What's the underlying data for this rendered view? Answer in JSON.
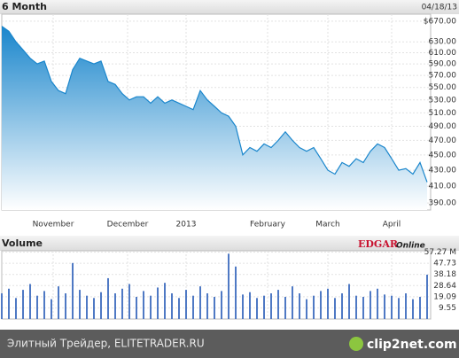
{
  "chart_data": [
    {
      "type": "area",
      "title": "6 Month",
      "subtitle": "04/18/13",
      "x": [
        0,
        2,
        4,
        6,
        8,
        10,
        12,
        14,
        16,
        18,
        20,
        22,
        24,
        26,
        28,
        30,
        32,
        34,
        36,
        38,
        40,
        42,
        44,
        46,
        48,
        50,
        52,
        54,
        56,
        58,
        60,
        62,
        64,
        66,
        68,
        70,
        72,
        74,
        76,
        78,
        80,
        82,
        84,
        86,
        88,
        90,
        92,
        94,
        96,
        98,
        100,
        102,
        104,
        106,
        108,
        110,
        112,
        114,
        116,
        118,
        120
      ],
      "values": [
        660,
        650,
        630,
        615,
        600,
        590,
        595,
        560,
        545,
        540,
        580,
        600,
        595,
        590,
        595,
        560,
        555,
        540,
        530,
        535,
        535,
        525,
        535,
        525,
        530,
        525,
        520,
        515,
        545,
        530,
        520,
        510,
        505,
        490,
        450,
        460,
        455,
        465,
        460,
        470,
        482,
        470,
        460,
        455,
        460,
        445,
        430,
        425,
        440,
        435,
        445,
        440,
        455,
        465,
        460,
        445,
        430,
        432,
        425,
        440,
        415
      ],
      "color": "#1a86cc",
      "log_y": true,
      "grid": true,
      "xlim": [
        0,
        121
      ],
      "ylim": [
        382,
        684
      ],
      "xticks": [
        {
          "value": 14.5,
          "label": "November"
        },
        {
          "value": 35.5,
          "label": "December"
        },
        {
          "value": 52,
          "label": "2013"
        },
        {
          "value": 75,
          "label": "February"
        },
        {
          "value": 92,
          "label": "March"
        },
        {
          "value": 110,
          "label": "April"
        }
      ],
      "yticks": [
        {
          "value": 670,
          "label": "$670.00"
        },
        {
          "value": 630,
          "label": "630.00"
        },
        {
          "value": 610,
          "label": "610.00"
        },
        {
          "value": 590,
          "label": "590.00"
        },
        {
          "value": 570,
          "label": "570.00"
        },
        {
          "value": 550,
          "label": "550.00"
        },
        {
          "value": 530,
          "label": "530.00"
        },
        {
          "value": 510,
          "label": "510.00"
        },
        {
          "value": 490,
          "label": "490.00"
        },
        {
          "value": 470,
          "label": "470.00"
        },
        {
          "value": 450,
          "label": "450.00"
        },
        {
          "value": 430,
          "label": "430.00"
        },
        {
          "value": 410,
          "label": "410.00"
        },
        {
          "value": 390,
          "label": "390.00"
        }
      ]
    },
    {
      "type": "bar",
      "title": "Volume",
      "annotation": [
        "EDGAR",
        "Online"
      ],
      "x": [
        0,
        2,
        4,
        6,
        8,
        10,
        12,
        14,
        16,
        18,
        20,
        22,
        24,
        26,
        28,
        30,
        32,
        34,
        36,
        38,
        40,
        42,
        44,
        46,
        48,
        50,
        52,
        54,
        56,
        58,
        60,
        62,
        64,
        66,
        68,
        70,
        72,
        74,
        76,
        78,
        80,
        82,
        84,
        86,
        88,
        90,
        92,
        94,
        96,
        98,
        100,
        102,
        104,
        106,
        108,
        110,
        112,
        114,
        116,
        118,
        120
      ],
      "values": [
        22,
        26,
        18,
        25,
        30,
        20,
        24,
        17,
        28,
        22,
        48,
        25,
        20,
        18,
        23,
        35,
        22,
        26,
        30,
        19,
        24,
        20,
        27,
        31,
        22,
        18,
        25,
        20,
        28,
        22,
        19,
        24,
        56,
        45,
        21,
        23,
        18,
        20,
        22,
        25,
        19,
        28,
        22,
        17,
        20,
        24,
        26,
        18,
        22,
        30,
        20,
        19,
        24,
        26,
        21,
        20,
        18,
        22,
        17,
        19,
        38
      ],
      "color": "#4f79c4",
      "xlim": [
        0,
        121
      ],
      "ylim": [
        0,
        58.5
      ],
      "yticks": [
        {
          "value": 57.27,
          "label": "57.27 M"
        },
        47.73,
        38.18,
        28.64,
        19.09,
        9.55
      ]
    }
  ],
  "footer": {
    "text": "Элитный Трейдер, ELITETRADER.RU",
    "logo": "clip2net.com"
  }
}
